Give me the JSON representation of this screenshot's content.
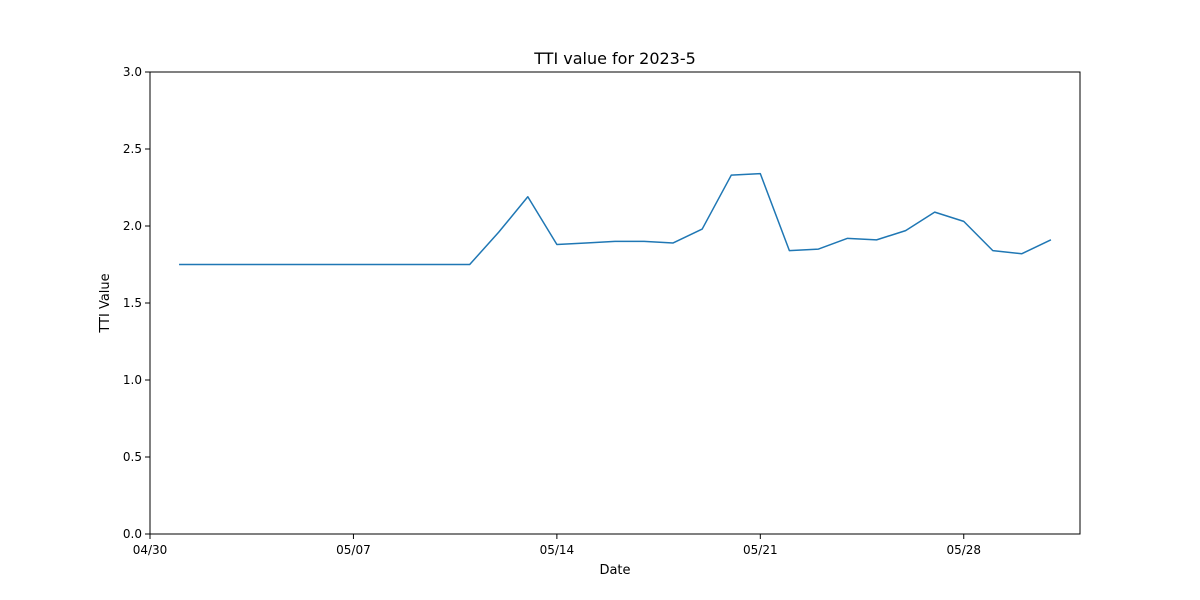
{
  "chart_data": {
    "type": "line",
    "title": "TTI value for 2023-5",
    "xlabel": "Date",
    "ylabel": "TTI Value",
    "ylim": [
      0,
      3
    ],
    "yticks": [
      0.0,
      0.5,
      1.0,
      1.5,
      2.0,
      2.5,
      3.0
    ],
    "ytick_labels": [
      "0.0",
      "0.5",
      "1.0",
      "1.5",
      "2.0",
      "2.5",
      "3.0"
    ],
    "xlim": [
      "2023-04-30",
      "2023-06-01"
    ],
    "xticks": [
      "2023-04-30",
      "2023-05-07",
      "2023-05-14",
      "2023-05-21",
      "2023-05-28"
    ],
    "xtick_labels": [
      "04/30",
      "05/07",
      "05/14",
      "05/21",
      "05/28"
    ],
    "grid": false,
    "line_color": "#1f77b4",
    "series": [
      {
        "x": [
          "2023-05-01",
          "2023-05-02",
          "2023-05-03",
          "2023-05-04",
          "2023-05-05",
          "2023-05-06",
          "2023-05-07",
          "2023-05-08",
          "2023-05-09",
          "2023-05-10",
          "2023-05-11",
          "2023-05-12",
          "2023-05-13",
          "2023-05-14",
          "2023-05-15",
          "2023-05-16",
          "2023-05-17",
          "2023-05-18",
          "2023-05-19",
          "2023-05-20",
          "2023-05-21",
          "2023-05-22",
          "2023-05-23",
          "2023-05-24",
          "2023-05-25",
          "2023-05-26",
          "2023-05-27",
          "2023-05-28",
          "2023-05-29",
          "2023-05-30",
          "2023-05-31"
        ],
        "values": [
          1.75,
          1.75,
          1.75,
          1.75,
          1.75,
          1.75,
          1.75,
          1.75,
          1.75,
          1.75,
          1.75,
          1.96,
          2.19,
          1.88,
          1.89,
          1.9,
          1.9,
          1.89,
          1.98,
          2.33,
          2.34,
          1.84,
          1.85,
          1.92,
          1.91,
          1.97,
          2.09,
          2.03,
          1.84,
          1.82,
          1.91
        ]
      }
    ]
  }
}
